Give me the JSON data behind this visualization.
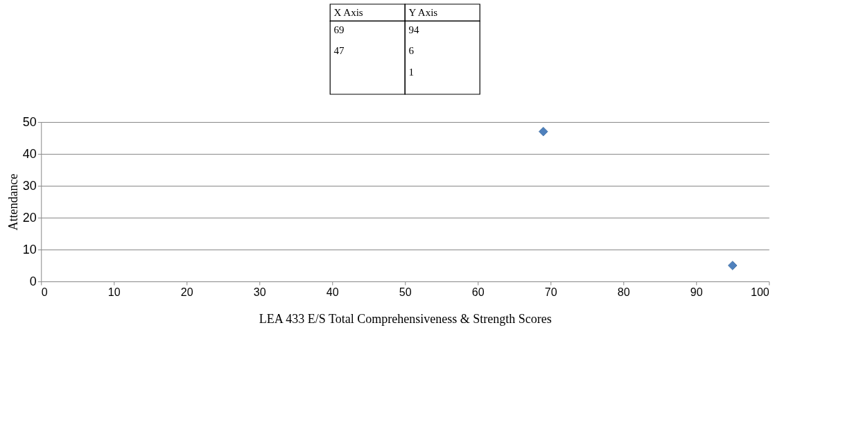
{
  "chart_data": {
    "type": "scatter",
    "xlabel": "LEA 433 E/S Total Comprehensiveness & Strength Scores",
    "ylabel": "Attendance",
    "x": [
      69,
      95
    ],
    "series": [
      {
        "color": "#4f81bd",
        "values": [
          47,
          5
        ]
      }
    ],
    "marker": "diamond",
    "xlim": [
      0,
      100
    ],
    "xticks": [
      0,
      10,
      20,
      30,
      40,
      50,
      60,
      70,
      80,
      90,
      100
    ],
    "ylim": [
      0,
      50
    ],
    "yticks": [
      0,
      10,
      20,
      30,
      40,
      50
    ],
    "grid": "y",
    "annotations": [
      "X Axis",
      "Y Axis",
      "69",
      "94",
      "47",
      "6",
      "1"
    ]
  }
}
